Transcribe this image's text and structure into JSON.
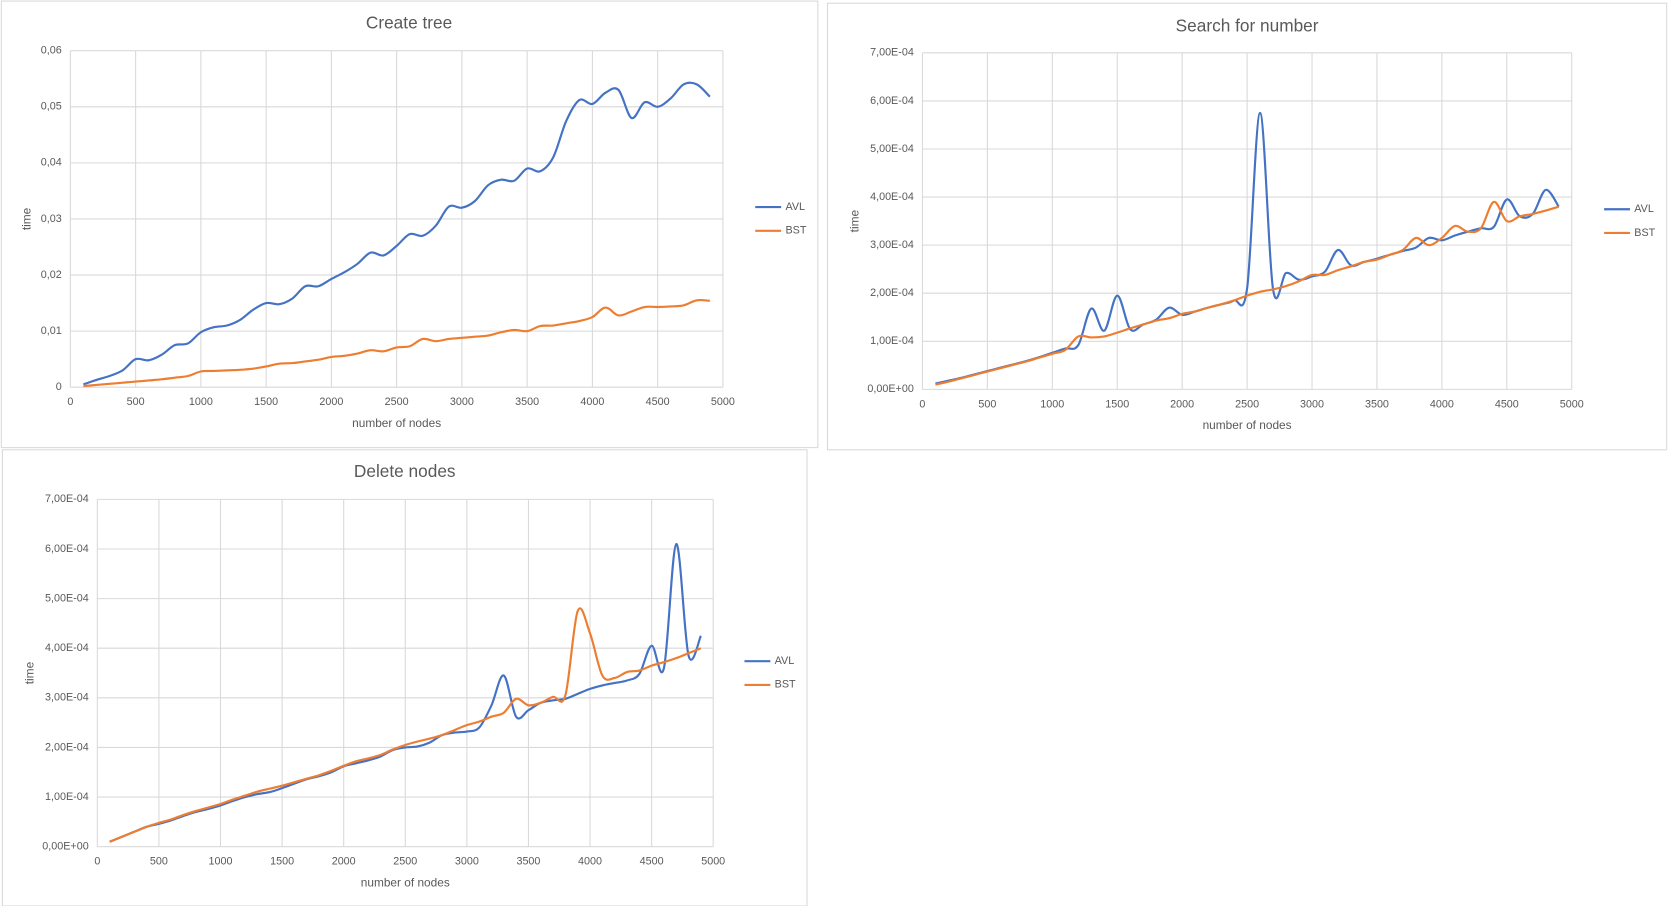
{
  "chart_data": [
    {
      "type": "line",
      "title": "Create tree",
      "xlabel": "number of nodes",
      "ylabel": "time",
      "x": [
        100,
        200,
        300,
        400,
        500,
        600,
        700,
        800,
        900,
        1000,
        1100,
        1200,
        1300,
        1400,
        1500,
        1600,
        1700,
        1800,
        1900,
        2000,
        2100,
        2200,
        2300,
        2400,
        2500,
        2600,
        2700,
        2800,
        2900,
        3000,
        3100,
        3200,
        3300,
        3400,
        3500,
        3600,
        3700,
        3800,
        3900,
        4000,
        4100,
        4200,
        4300,
        4400,
        4500,
        4600,
        4700,
        4800,
        4900
      ],
      "series": [
        {
          "name": "AVL",
          "color": "#4472c4",
          "values": [
            0.0005,
            0.0013,
            0.002,
            0.003,
            0.005,
            0.0048,
            0.0058,
            0.0075,
            0.0078,
            0.0098,
            0.0107,
            0.011,
            0.012,
            0.0138,
            0.015,
            0.0148,
            0.0158,
            0.018,
            0.018,
            0.0193,
            0.0205,
            0.022,
            0.024,
            0.0235,
            0.0252,
            0.0273,
            0.027,
            0.0288,
            0.0322,
            0.032,
            0.0332,
            0.036,
            0.037,
            0.0368,
            0.039,
            0.0385,
            0.041,
            0.0475,
            0.0512,
            0.0505,
            0.0525,
            0.053,
            0.048,
            0.0508,
            0.05,
            0.0515,
            0.054,
            0.054,
            0.0518
          ]
        },
        {
          "name": "BST",
          "color": "#ed7d31",
          "values": [
            0.0002,
            0.0004,
            0.0006,
            0.0008,
            0.001,
            0.0012,
            0.0014,
            0.0017,
            0.002,
            0.0028,
            0.0029,
            0.003,
            0.0031,
            0.0033,
            0.0037,
            0.0042,
            0.0043,
            0.0046,
            0.0049,
            0.0054,
            0.0056,
            0.006,
            0.0066,
            0.0064,
            0.0071,
            0.0073,
            0.0086,
            0.0082,
            0.0086,
            0.0088,
            0.009,
            0.0092,
            0.0098,
            0.0102,
            0.01,
            0.0109,
            0.011,
            0.0114,
            0.0118,
            0.0125,
            0.0142,
            0.0128,
            0.0135,
            0.0143,
            0.0143,
            0.0144,
            0.0146,
            0.0155,
            0.0154
          ]
        }
      ],
      "xlim": [
        0,
        5000
      ],
      "xticks": [
        0,
        500,
        1000,
        1500,
        2000,
        2500,
        3000,
        3500,
        4000,
        4500,
        5000
      ],
      "ylim": [
        0,
        0.06
      ],
      "yticks": [
        0,
        {
          "value": 0.01,
          "label": "0,01"
        },
        {
          "value": 0.02,
          "label": "0,02"
        },
        {
          "value": 0.03,
          "label": "0,03"
        },
        {
          "value": 0.04,
          "label": "0,04"
        },
        {
          "value": 0.05,
          "label": "0,05"
        },
        {
          "value": 0.06,
          "label": "0,06"
        }
      ],
      "grid": true,
      "legend": "right"
    },
    {
      "type": "line",
      "title": "Search for number",
      "xlabel": "number of nodes",
      "ylabel": "time",
      "x": [
        100,
        200,
        300,
        400,
        500,
        600,
        700,
        800,
        900,
        1000,
        1100,
        1200,
        1300,
        1400,
        1500,
        1600,
        1700,
        1800,
        1900,
        2000,
        2100,
        2200,
        2300,
        2400,
        2500,
        2600,
        2700,
        2800,
        2900,
        3000,
        3100,
        3200,
        3300,
        3400,
        3500,
        3600,
        3700,
        3800,
        3900,
        4000,
        4100,
        4200,
        4300,
        4400,
        4500,
        4600,
        4700,
        4800,
        4900
      ],
      "series": [
        {
          "name": "AVL",
          "color": "#4472c4",
          "values": [
            1.2e-05,
            1.8e-05,
            2.4e-05,
            3.1e-05,
            3.8e-05,
            4.5e-05,
            5.2e-05,
            5.9e-05,
            6.7e-05,
            7.6e-05,
            8.5e-05,
            9.2e-05,
            0.000168,
            0.000122,
            0.000195,
            0.000125,
            0.000135,
            0.000145,
            0.00017,
            0.000155,
            0.000162,
            0.00017,
            0.000177,
            0.000185,
            0.00021,
            0.000575,
            0.000208,
            0.000242,
            0.000228,
            0.000235,
            0.000245,
            0.00029,
            0.000258,
            0.000265,
            0.000272,
            0.00028,
            0.000288,
            0.000295,
            0.000315,
            0.00031,
            0.00032,
            0.000328,
            0.000335,
            0.000338,
            0.000395,
            0.00036,
            0.000365,
            0.000415,
            0.00038
          ]
        },
        {
          "name": "BST",
          "color": "#ed7d31",
          "values": [
            1e-05,
            1.6e-05,
            2.3e-05,
            3e-05,
            3.7e-05,
            4.4e-05,
            5.1e-05,
            5.8e-05,
            6.6e-05,
            7.4e-05,
            8.2e-05,
            0.00011,
            0.000108,
            0.00011,
            0.000118,
            0.000127,
            0.000135,
            0.000143,
            0.000148,
            0.000157,
            0.000162,
            0.00017,
            0.000177,
            0.000185,
            0.000195,
            0.000203,
            0.000208,
            0.000215,
            0.000225,
            0.000238,
            0.000238,
            0.000248,
            0.000256,
            0.000265,
            0.00027,
            0.00028,
            0.00029,
            0.000315,
            0.0003,
            0.000315,
            0.00034,
            0.000328,
            0.000335,
            0.00039,
            0.00035,
            0.00036,
            0.000365,
            0.000372,
            0.00038
          ]
        }
      ],
      "xlim": [
        0,
        5000
      ],
      "xticks": [
        0,
        500,
        1000,
        1500,
        2000,
        2500,
        3000,
        3500,
        4000,
        4500,
        5000
      ],
      "ylim": [
        0,
        0.0007
      ],
      "yticks": [
        {
          "value": 0,
          "label": "0,00E+00"
        },
        {
          "value": 0.0001,
          "label": "1,00E-04"
        },
        {
          "value": 0.0002,
          "label": "2,00E-04"
        },
        {
          "value": 0.0003,
          "label": "3,00E-04"
        },
        {
          "value": 0.0004,
          "label": "4,00E-04"
        },
        {
          "value": 0.0005,
          "label": "5,00E-04"
        },
        {
          "value": 0.0006,
          "label": "6,00E-04"
        },
        {
          "value": 0.0007,
          "label": "7,00E-04"
        }
      ],
      "grid": true,
      "legend": "right"
    },
    {
      "type": "line",
      "title": "Delete nodes",
      "xlabel": "number of nodes",
      "ylabel": "time",
      "x": [
        100,
        200,
        300,
        400,
        500,
        600,
        700,
        800,
        900,
        1000,
        1100,
        1200,
        1300,
        1400,
        1500,
        1600,
        1700,
        1800,
        1900,
        2000,
        2100,
        2200,
        2300,
        2400,
        2500,
        2600,
        2700,
        2800,
        2900,
        3000,
        3100,
        3200,
        3300,
        3400,
        3500,
        3600,
        3700,
        3800,
        3900,
        4000,
        4100,
        4200,
        4300,
        4400,
        4500,
        4600,
        4700,
        4800,
        4900
      ],
      "series": [
        {
          "name": "AVL",
          "color": "#4472c4",
          "values": [
            1e-05,
            2e-05,
            3e-05,
            4e-05,
            4.6e-05,
            5.3e-05,
            6.2e-05,
            7e-05,
            7.6e-05,
            8.3e-05,
            9.2e-05,
            0.0001,
            0.000106,
            0.00011,
            0.000118,
            0.000127,
            0.000136,
            0.000142,
            0.00015,
            0.000162,
            0.000168,
            0.000174,
            0.000182,
            0.000195,
            0.0002,
            0.000202,
            0.00021,
            0.000225,
            0.00023,
            0.000232,
            0.00024,
            0.000285,
            0.000345,
            0.000262,
            0.000275,
            0.00029,
            0.000295,
            0.000298,
            0.000308,
            0.000318,
            0.000325,
            0.00033,
            0.000335,
            0.000348,
            0.000405,
            0.00036,
            0.00061,
            0.000385,
            0.000425
          ]
        },
        {
          "name": "BST",
          "color": "#ed7d31",
          "values": [
            1e-05,
            2e-05,
            3e-05,
            4e-05,
            4.8e-05,
            5.5e-05,
            6.4e-05,
            7.2e-05,
            7.9e-05,
            8.6e-05,
            9.5e-05,
            0.000103,
            0.000111,
            0.000117,
            0.000123,
            0.00013,
            0.000137,
            0.000144,
            0.000153,
            0.000163,
            0.000172,
            0.000178,
            0.000185,
            0.000196,
            0.000205,
            0.000212,
            0.000218,
            0.000225,
            0.000235,
            0.000245,
            0.000252,
            0.000262,
            0.00027,
            0.000298,
            0.000285,
            0.00029,
            0.000302,
            0.000305,
            0.000475,
            0.00043,
            0.000345,
            0.00034,
            0.000352,
            0.000355,
            0.000365,
            0.000372,
            0.00038,
            0.00039,
            0.0004
          ]
        }
      ],
      "xlim": [
        0,
        5000
      ],
      "xticks": [
        0,
        500,
        1000,
        1500,
        2000,
        2500,
        3000,
        3500,
        4000,
        4500,
        5000
      ],
      "ylim": [
        0,
        0.0007
      ],
      "yticks": [
        {
          "value": 0,
          "label": "0,00E+00"
        },
        {
          "value": 0.0001,
          "label": "1,00E-04"
        },
        {
          "value": 0.0002,
          "label": "2,00E-04"
        },
        {
          "value": 0.0003,
          "label": "3,00E-04"
        },
        {
          "value": 0.0004,
          "label": "4,00E-04"
        },
        {
          "value": 0.0005,
          "label": "5,00E-04"
        },
        {
          "value": 0.0006,
          "label": "6,00E-04"
        },
        {
          "value": 0.0007,
          "label": "7,00E-04"
        }
      ],
      "grid": true,
      "legend": "right"
    }
  ]
}
